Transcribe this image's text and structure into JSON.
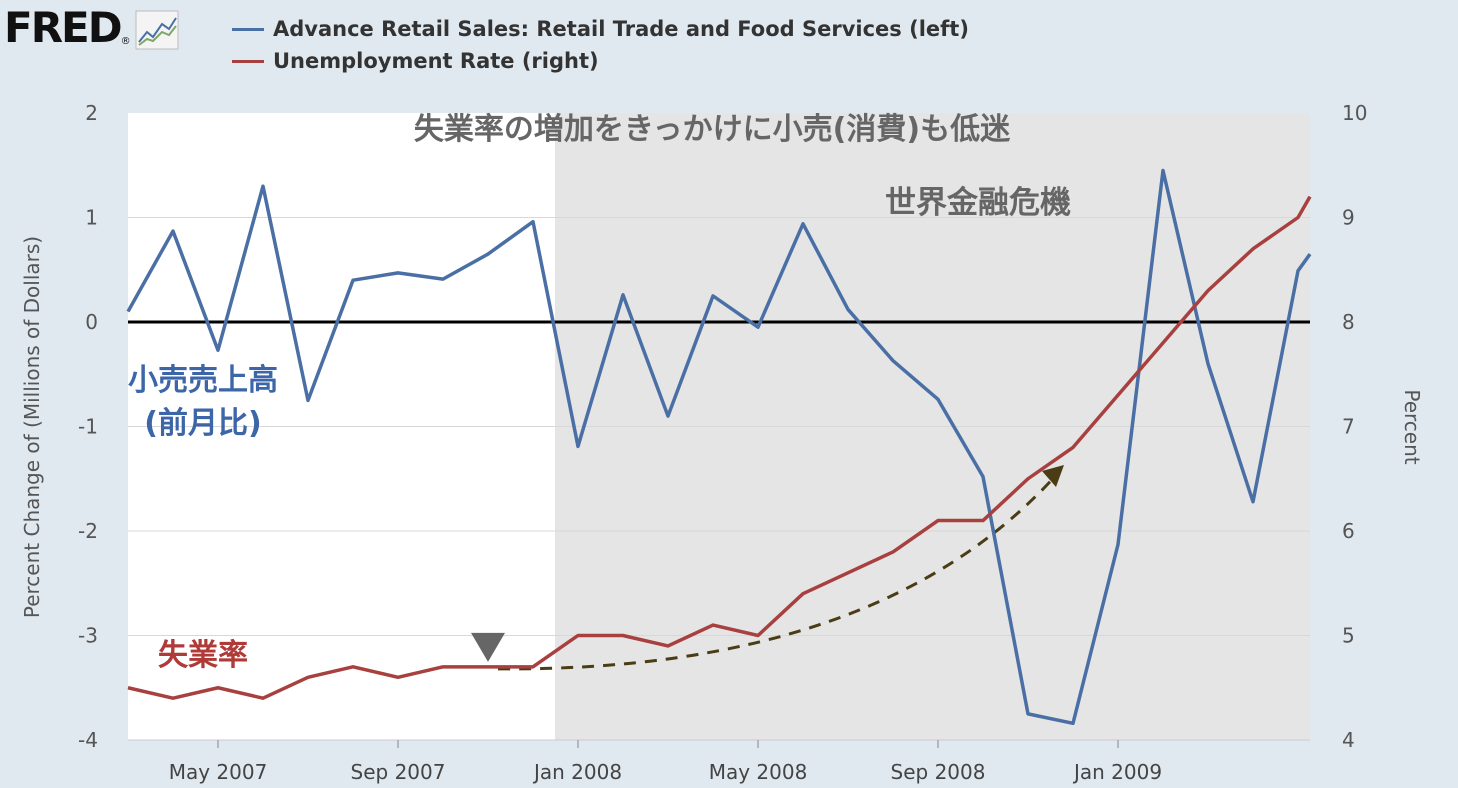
{
  "header": {
    "logo_text": "FRED",
    "logo_mark": "®",
    "logo_icon": "line-chart-icon"
  },
  "colors": {
    "background": "#e1e9f0",
    "plot_white": "#ffffff",
    "recession_shade": "#e5e5e5",
    "retail_line": "#4a6fa5",
    "unemployment_line": "#a8403f",
    "zero_line": "#000000",
    "annotation_arrow": "#4a3c14",
    "marker": "#666666",
    "title_gray": "#666666",
    "axis_text": "#555555"
  },
  "annotations": {
    "title": "失業率の増加をきっかけに小売(消費)も低迷",
    "crisis_label": "世界金融危機",
    "retail_label_line1": "小売売上高",
    "retail_label_line2": "(前月比)",
    "unemployment_label": "失業率"
  },
  "chart_data": {
    "type": "line",
    "x_start": "2007-03",
    "x_step": "month",
    "x": [
      "Mar 2007",
      "Apr 2007",
      "May 2007",
      "Jun 2007",
      "Jul 2007",
      "Aug 2007",
      "Sep 2007",
      "Oct 2007",
      "Nov 2007",
      "Dec 2007",
      "Jan 2008",
      "Feb 2008",
      "Mar 2008",
      "Apr 2008",
      "May 2008",
      "Jun 2008",
      "Jul 2008",
      "Aug 2008",
      "Sep 2008",
      "Oct 2008",
      "Nov 2008",
      "Dec 2008",
      "Jan 2009",
      "Feb 2009",
      "Mar 2009",
      "Apr 2009",
      "May 2009"
    ],
    "x_ticks": [
      "May 2007",
      "Sep 2007",
      "Jan 2008",
      "May 2008",
      "Sep 2008",
      "Jan 2009"
    ],
    "series": [
      {
        "name": "Advance Retail Sales: Retail Trade and Food Services (left)",
        "axis": "left",
        "values": [
          0.1,
          0.87,
          -0.27,
          1.3,
          -0.75,
          0.4,
          0.47,
          0.41,
          0.65,
          0.96,
          -1.19,
          0.26,
          -0.9,
          0.25,
          -0.05,
          0.94,
          0.12,
          -0.37,
          -0.74,
          -1.48,
          -3.75,
          -3.84,
          -2.13,
          1.45,
          -0.4,
          -1.72,
          0.49
        ],
        "tail_value": 0.65
      },
      {
        "name": "Unemployment Rate (right)",
        "axis": "right",
        "values": [
          4.5,
          4.4,
          4.5,
          4.4,
          4.6,
          4.7,
          4.6,
          4.7,
          4.7,
          4.7,
          5.0,
          5.0,
          4.9,
          5.1,
          5.0,
          5.4,
          5.6,
          5.8,
          6.1,
          6.1,
          6.5,
          6.8,
          7.3,
          7.8,
          8.3,
          8.7,
          9.0
        ],
        "tail_value": 9.2
      }
    ],
    "ylabel_left": "Percent Change of (Millions of Dollars)",
    "ylabel_right": "Percent",
    "ylim_left": [
      -4,
      2
    ],
    "ylim_right": [
      4,
      10
    ],
    "yticks_left": [
      "2",
      "1",
      "0",
      "-1",
      "-2",
      "-3",
      "-4"
    ],
    "yticks_right": [
      "10",
      "9",
      "8",
      "7",
      "6",
      "5",
      "4"
    ],
    "shaded_region": {
      "from": "Dec 2007",
      "to": "Jun 2009",
      "label": "recession"
    },
    "zero_line": true,
    "grid": "horizontal",
    "legend_position": "top-left"
  }
}
